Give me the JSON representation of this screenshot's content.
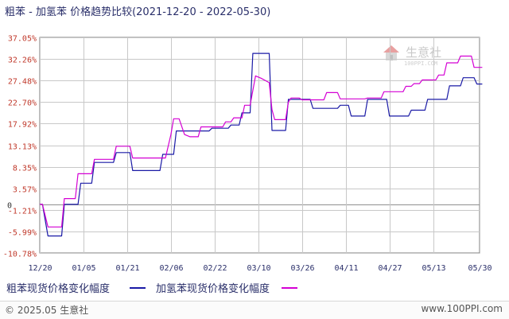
{
  "title": "粗苯 - 加氢苯 价格趋势比较(2021-12-20 - 2022-05-30)",
  "footer": {
    "copyright": "© 2025.05 生意社",
    "site": "www.100PPI.com"
  },
  "watermark": {
    "name": "生意社",
    "sub": "100PPI.COM"
  },
  "colors": {
    "series1": "#1a1aa6",
    "series2": "#d400d4",
    "grid": "#c8c8c8",
    "zero": "#909090",
    "axis": "#777777"
  },
  "chart_data": {
    "type": "line",
    "title": "粗苯 - 加氢苯 价格趋势比较(2021-12-20 - 2022-05-30)",
    "ylim": [
      -10.78,
      37.05
    ],
    "yticks": [
      "37.05%",
      "32.26%",
      "27.48%",
      "22.70%",
      "17.92%",
      "13.13%",
      "8.35%",
      "3.57%",
      "-1.21%",
      "-5.99%",
      "-10.78%"
    ],
    "ytick_values": [
      37.05,
      32.26,
      27.48,
      22.7,
      17.92,
      13.13,
      8.35,
      3.57,
      -1.21,
      -5.99,
      -10.78
    ],
    "zero_label": "0",
    "x_start": "2021-12-20",
    "x_end": "2022-05-30",
    "xticks": [
      "12/20",
      "01/05",
      "01/21",
      "02/06",
      "02/22",
      "03/10",
      "03/26",
      "04/11",
      "04/27",
      "05/13",
      "05/30"
    ],
    "grid": true,
    "legend_position": "bottom",
    "series": [
      {
        "name": "粗苯现货价格变化幅度",
        "color": "#1a1aa6",
        "points": [
          [
            "2021-12-20",
            0
          ],
          [
            "2021-12-21",
            0
          ],
          [
            "2021-12-23",
            -7.0
          ],
          [
            "2021-12-28",
            -7.0
          ],
          [
            "2021-12-29",
            0
          ],
          [
            "2022-01-03",
            0
          ],
          [
            "2022-01-04",
            4.7
          ],
          [
            "2022-01-08",
            4.7
          ],
          [
            "2022-01-09",
            9.3
          ],
          [
            "2022-01-16",
            9.3
          ],
          [
            "2022-01-17",
            11.5
          ],
          [
            "2022-01-22",
            11.5
          ],
          [
            "2022-01-23",
            7.5
          ],
          [
            "2022-02-02",
            7.5
          ],
          [
            "2022-02-03",
            11.1
          ],
          [
            "2022-02-07",
            11.1
          ],
          [
            "2022-02-08",
            16.3
          ],
          [
            "2022-02-20",
            16.3
          ],
          [
            "2022-02-21",
            16.9
          ],
          [
            "2022-02-27",
            16.9
          ],
          [
            "2022-02-28",
            17.6
          ],
          [
            "2022-03-03",
            17.6
          ],
          [
            "2022-03-04",
            20.3
          ],
          [
            "2022-03-07",
            20.3
          ],
          [
            "2022-03-08",
            33.5
          ],
          [
            "2022-03-14",
            33.5
          ],
          [
            "2022-03-15",
            16.4
          ],
          [
            "2022-03-20",
            16.4
          ],
          [
            "2022-03-21",
            23.3
          ],
          [
            "2022-03-29",
            23.3
          ],
          [
            "2022-03-30",
            21.3
          ],
          [
            "2022-04-08",
            21.3
          ],
          [
            "2022-04-09",
            22.0
          ],
          [
            "2022-04-12",
            22.0
          ],
          [
            "2022-04-13",
            19.6
          ],
          [
            "2022-04-18",
            19.6
          ],
          [
            "2022-04-19",
            23.3
          ],
          [
            "2022-04-26",
            23.3
          ],
          [
            "2022-04-27",
            19.6
          ],
          [
            "2022-05-04",
            19.6
          ],
          [
            "2022-05-05",
            20.9
          ],
          [
            "2022-05-10",
            20.9
          ],
          [
            "2022-05-11",
            23.3
          ],
          [
            "2022-05-18",
            23.3
          ],
          [
            "2022-05-19",
            26.3
          ],
          [
            "2022-05-23",
            26.3
          ],
          [
            "2022-05-24",
            28.1
          ],
          [
            "2022-05-28",
            28.1
          ],
          [
            "2022-05-29",
            26.7
          ],
          [
            "2022-05-31",
            26.7
          ]
        ]
      },
      {
        "name": "加氢苯现货价格变化幅度",
        "color": "#d400d4",
        "points": [
          [
            "2021-12-20",
            0
          ],
          [
            "2021-12-21",
            0
          ],
          [
            "2021-12-23",
            -5.0
          ],
          [
            "2021-12-28",
            -5.0
          ],
          [
            "2021-12-29",
            1.3
          ],
          [
            "2022-01-02",
            1.3
          ],
          [
            "2022-01-03",
            6.8
          ],
          [
            "2022-01-08",
            6.8
          ],
          [
            "2022-01-09",
            10.0
          ],
          [
            "2022-01-16",
            10.0
          ],
          [
            "2022-01-17",
            12.9
          ],
          [
            "2022-01-22",
            12.9
          ],
          [
            "2022-01-23",
            10.3
          ],
          [
            "2022-02-04",
            10.3
          ],
          [
            "2022-02-06",
            15.5
          ],
          [
            "2022-02-07",
            19.0
          ],
          [
            "2022-02-09",
            19.0
          ],
          [
            "2022-02-11",
            15.5
          ],
          [
            "2022-02-13",
            15.0
          ],
          [
            "2022-02-16",
            15.0
          ],
          [
            "2022-02-17",
            17.2
          ],
          [
            "2022-02-25",
            17.2
          ],
          [
            "2022-02-26",
            18.3
          ],
          [
            "2022-02-28",
            18.3
          ],
          [
            "2022-03-01",
            19.2
          ],
          [
            "2022-03-04",
            19.2
          ],
          [
            "2022-03-05",
            22.0
          ],
          [
            "2022-03-07",
            22.0
          ],
          [
            "2022-03-09",
            28.5
          ],
          [
            "2022-03-11",
            28.0
          ],
          [
            "2022-03-14",
            27.0
          ],
          [
            "2022-03-15",
            21.0
          ],
          [
            "2022-03-16",
            18.8
          ],
          [
            "2022-03-20",
            18.8
          ],
          [
            "2022-03-21",
            22.7
          ],
          [
            "2022-03-22",
            23.6
          ],
          [
            "2022-03-25",
            23.6
          ],
          [
            "2022-03-26",
            23.2
          ],
          [
            "2022-04-03",
            23.2
          ],
          [
            "2022-04-04",
            24.8
          ],
          [
            "2022-04-08",
            24.8
          ],
          [
            "2022-04-09",
            23.4
          ],
          [
            "2022-04-18",
            23.4
          ],
          [
            "2022-04-19",
            23.6
          ],
          [
            "2022-04-24",
            23.6
          ],
          [
            "2022-04-25",
            25.0
          ],
          [
            "2022-05-02",
            25.0
          ],
          [
            "2022-05-03",
            26.2
          ],
          [
            "2022-05-05",
            26.2
          ],
          [
            "2022-05-06",
            26.8
          ],
          [
            "2022-05-08",
            26.8
          ],
          [
            "2022-05-09",
            27.6
          ],
          [
            "2022-05-14",
            27.6
          ],
          [
            "2022-05-15",
            28.7
          ],
          [
            "2022-05-17",
            28.7
          ],
          [
            "2022-05-18",
            31.4
          ],
          [
            "2022-05-22",
            31.4
          ],
          [
            "2022-05-23",
            32.9
          ],
          [
            "2022-05-27",
            32.9
          ],
          [
            "2022-05-28",
            30.4
          ],
          [
            "2022-05-31",
            30.4
          ]
        ]
      }
    ]
  }
}
